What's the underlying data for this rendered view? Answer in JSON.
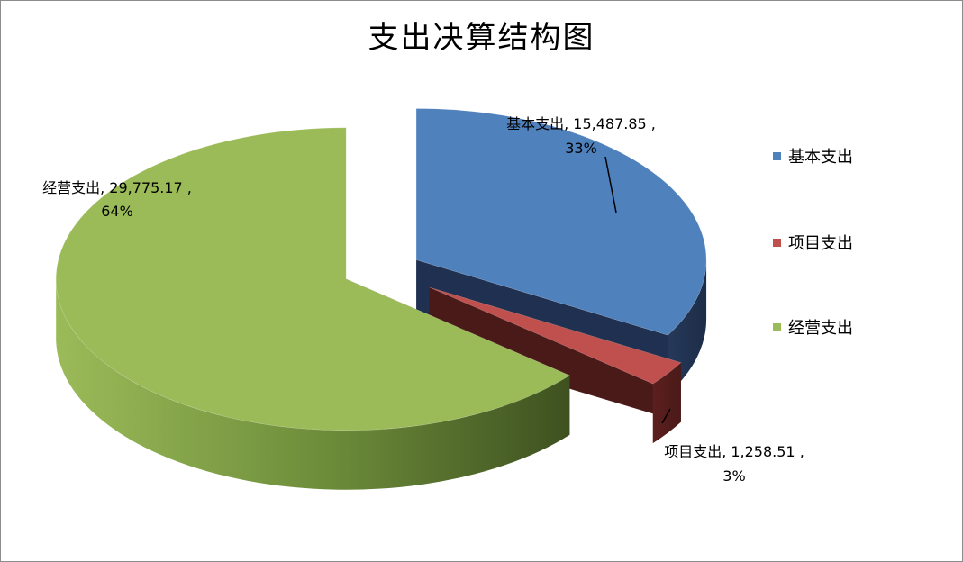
{
  "chart_data": {
    "type": "pie",
    "title": "支出决算结构图",
    "slices": [
      {
        "name": "基本支出",
        "value": 15487.85,
        "value_label": "15,487.85",
        "percent_label": "33%",
        "color": "#4f81bd"
      },
      {
        "name": "项目支出",
        "value": 1258.51,
        "value_label": "1,258.51",
        "percent_label": "3%",
        "color": "#c0504d"
      },
      {
        "name": "经营支出",
        "value": 29775.17,
        "value_label": "29,775.17",
        "percent_label": "64%",
        "color": "#9bbb59"
      }
    ],
    "legend": {
      "position": "right",
      "items": [
        "基本支出",
        "项目支出",
        "经营支出"
      ]
    },
    "exploded": true,
    "three_d": true
  }
}
